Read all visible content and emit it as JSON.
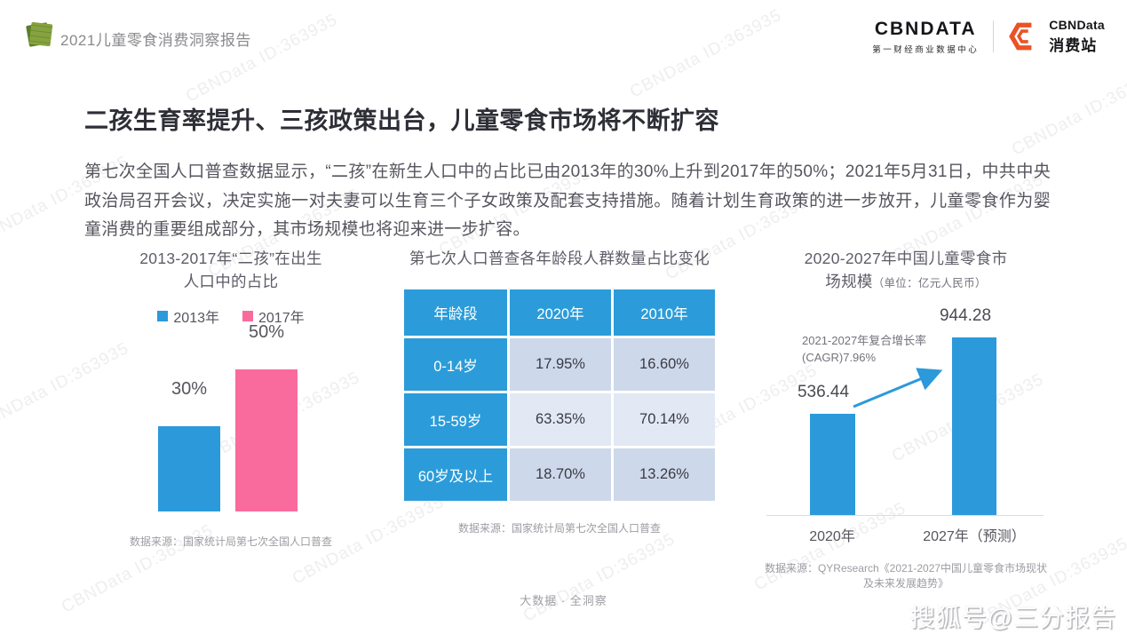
{
  "header": {
    "report_title": "2021儿童零食消费洞察报告",
    "brand": {
      "logo_text": "CBNDATA",
      "logo_subtitle": "第一财经商业数据中心",
      "station_name_en": "CBNData",
      "station_name_cn": "消费站"
    }
  },
  "main": {
    "title": "二孩生育率提升、三孩政策出台，儿童零食市场将不断扩容",
    "paragraph": "第七次全国人口普查数据显示，“二孩”在新生人口中的占比已由2013年的30%上升到2017年的50%；2021年5月31日，中共中央政治局召开会议，决定实施一对夫妻可以生育三个子女政策及配套支持措施。随着计划生育政策的进一步放开，儿童零食作为婴童消费的重要组成部分，其市场规模也将迎来进一步扩容。"
  },
  "chart_data": [
    {
      "type": "bar",
      "title": "2013-2017年“二孩”在出生人口中的占比",
      "categories": [
        "2013年",
        "2017年"
      ],
      "values": [
        30,
        50
      ],
      "value_labels": [
        "30%",
        "50%"
      ],
      "unit": "%",
      "legend": [
        "2013年",
        "2017年"
      ],
      "legend_position": "top",
      "colors": [
        "#2c99da",
        "#fa6b9d"
      ],
      "grid": false
    },
    {
      "type": "table",
      "title": "第七次人口普查各年龄段人群数量占比变化",
      "columns": [
        "年龄段",
        "2020年",
        "2010年"
      ],
      "rows": [
        [
          "0-14岁",
          "17.95%",
          "16.60%"
        ],
        [
          "15-59岁",
          "63.35%",
          "70.14%"
        ],
        [
          "60岁及以上",
          "18.70%",
          "13.26%"
        ]
      ]
    },
    {
      "type": "bar",
      "title": "2020-2027年中国儿童零食市场规模",
      "unit": "亿元人民币",
      "categories": [
        "2020年",
        "2027年（预测）"
      ],
      "values": [
        536.44,
        944.28
      ],
      "value_labels": [
        "536.44",
        "944.28"
      ],
      "annotation": "2021-2027年复合增长率(CAGR)7.96%",
      "colors": [
        "#2c99da",
        "#2c99da"
      ],
      "grid": false
    }
  ],
  "panels": {
    "left": {
      "title_line1": "2013-2017年“二孩”在出生",
      "title_line2": "人口中的占比",
      "legend": [
        {
          "label": "2013年",
          "color": "#2c99da"
        },
        {
          "label": "2017年",
          "color": "#fa6b9d"
        }
      ],
      "bars": [
        {
          "label": "30%"
        },
        {
          "label": "50%"
        }
      ],
      "source": "数据来源：国家统计局第七次全国人口普查"
    },
    "middle": {
      "title": "第七次人口普查各年龄段人群数量占比变化",
      "source": "数据来源：国家统计局第七次全国人口普查"
    },
    "right": {
      "title_line1": "2020-2027年中国儿童零食市",
      "title_line2_main": "场规模",
      "title_line2_unit": "（单位：亿元人民币）",
      "annotation_line1": "2021-2027年复合增长率",
      "annotation_line2": "(CAGR)7.96%",
      "bars": [
        {
          "value": "536.44",
          "x_label": "2020年"
        },
        {
          "value": "944.28",
          "x_label": "2027年（预测）"
        }
      ],
      "source_line1": "数据来源：QYResearch《2021-2027中国儿童零食市场现状",
      "source_line2": "及未来发展趋势》"
    }
  },
  "footer": {
    "center_text": "大数据 · 全洞察",
    "sohu_watermark": "搜狐号@三分报告"
  },
  "watermark": {
    "text": "CBNData ID:363935"
  },
  "colors": {
    "blue": "#2c99da",
    "pink": "#fa6b9d",
    "table_header_blue": "#2b9cd9",
    "row_shade_dark": "#cdd9eb",
    "row_shade_light": "#e2e9f4",
    "brand_orange": "#e95326",
    "icon_green": "#85a33e"
  }
}
